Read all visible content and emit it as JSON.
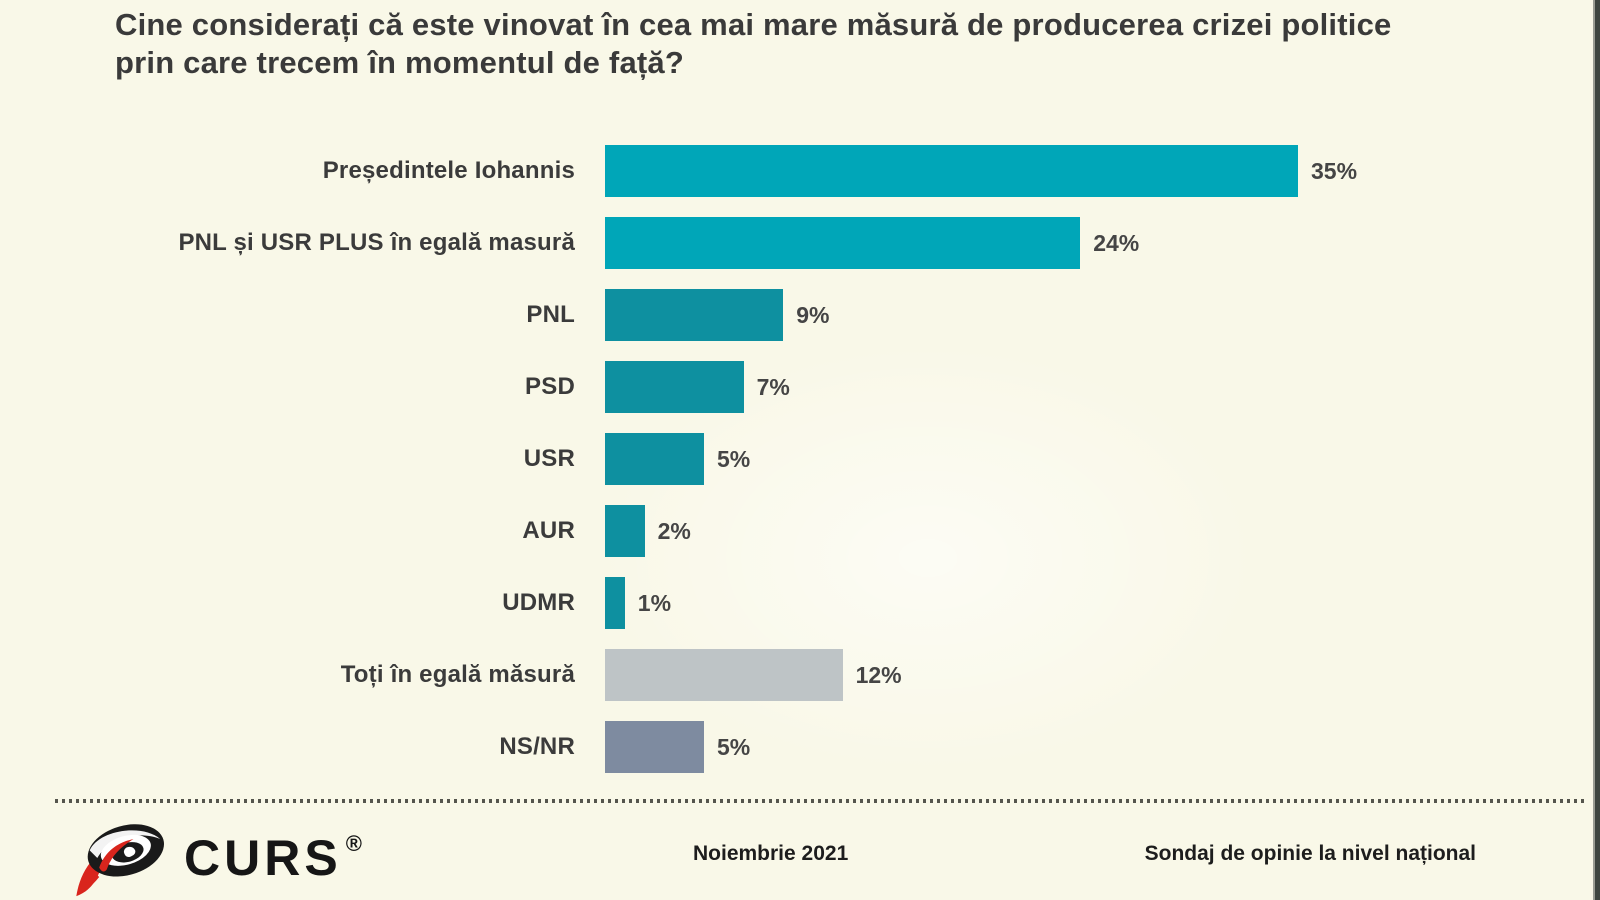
{
  "title": "Cine considerați că este vinovat în cea mai mare măsură de producerea crizei politice prin care trecem în momentul de față?",
  "chart_data": {
    "type": "bar",
    "orientation": "horizontal",
    "title": "Cine considerați că este vinovat în cea mai mare măsură de producerea crizei politice prin care trecem în momentul de față?",
    "categories": [
      "Președintele Iohannis",
      "PNL și USR PLUS în egală masură",
      "PNL",
      "PSD",
      "USR",
      "AUR",
      "UDMR",
      "Toți în egală măsură",
      "NS/NR"
    ],
    "values": [
      35,
      24,
      9,
      7,
      5,
      2,
      1,
      12,
      5
    ],
    "value_labels": [
      "35%",
      "24%",
      "9%",
      "7%",
      "5%",
      "2%",
      "1%",
      "12%",
      "5%"
    ],
    "unit": "%",
    "xlim": [
      0,
      35
    ],
    "grid": false,
    "legend": false,
    "bar_colors": [
      "#00a6b8",
      "#00a6b8",
      "#0e90a0",
      "#0e90a0",
      "#0e90a0",
      "#0e90a0",
      "#0e90a0",
      "#bec4c6",
      "#7e8ba0"
    ]
  },
  "colors": {
    "background": "#f9f8e8",
    "teal_bright": "#00a6b8",
    "teal_dark": "#0e90a0",
    "gray_light": "#bec4c6",
    "slate_gray": "#7e8ba0",
    "title_text": "#3a3a3a",
    "logo_red": "#d9251d",
    "logo_black": "#1a1a1a"
  },
  "footer": {
    "logo_text": "CURS",
    "registered_mark": "®",
    "date": "Noiembrie 2021",
    "note": "Sondaj de opinie la nivel național"
  }
}
